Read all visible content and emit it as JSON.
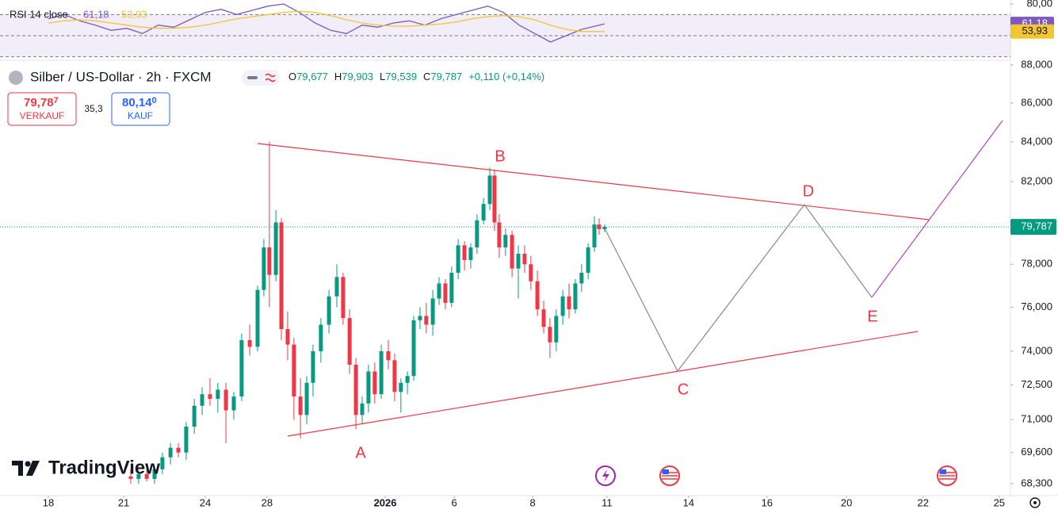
{
  "chart_data": [
    {
      "type": "candlestick",
      "title": "Silber / US-Dollar · 2h · FXCM",
      "x": [
        3.15,
        3.45,
        3.76,
        4.06,
        4.36,
        4.67,
        4.97,
        5.27,
        5.58,
        5.88,
        6.18,
        6.48,
        6.79,
        7.09,
        7.39,
        7.7,
        8.0,
        8.24,
        8.45,
        8.7,
        8.91,
        9.15,
        9.39,
        9.64,
        9.88,
        10.12,
        10.42,
        10.73,
        11.03,
        11.27,
        11.52,
        11.76,
        12.0,
        12.24,
        12.48,
        12.73,
        13.0,
        13.24,
        13.48,
        13.73,
        13.97,
        14.21,
        14.45,
        14.7,
        14.94,
        15.18,
        15.42,
        15.67,
        15.91,
        16.15,
        16.39,
        16.64,
        16.88,
        17.06,
        17.24,
        17.48,
        17.73,
        17.97,
        18.21,
        18.45,
        18.7,
        18.94,
        19.18,
        19.42,
        19.67,
        19.91,
        20.15,
        20.39,
        20.64,
        20.88,
        21.06,
        21.27
      ],
      "open": [
        68.6,
        68.5,
        68.7,
        68.5,
        68.9,
        69.4,
        69.8,
        69.6,
        70.7,
        71.6,
        72.1,
        71.9,
        72.3,
        71.4,
        72.0,
        74.5,
        74.2,
        76.8,
        78.8,
        77.5,
        80.0,
        75.0,
        74.3,
        72.0,
        71.2,
        72.6,
        74.0,
        75.2,
        76.5,
        77.4,
        75.5,
        73.4,
        71.2,
        71.7,
        73.1,
        72.1,
        74.0,
        73.6,
        72.2,
        72.6,
        72.9,
        75.4,
        75.6,
        75.2,
        76.4,
        77.1,
        76.2,
        77.6,
        78.9,
        78.2,
        78.8,
        80.1,
        80.9,
        82.3,
        80.0,
        78.8,
        79.4,
        77.8,
        78.5,
        78.0,
        77.2,
        75.9,
        75.1,
        74.4,
        75.6,
        76.5,
        75.9,
        77.1,
        77.6,
        78.8,
        79.9,
        79.677
      ],
      "high": [
        68.9,
        68.8,
        68.9,
        69.0,
        69.6,
        70.0,
        70.0,
        70.9,
        71.9,
        72.4,
        72.8,
        72.6,
        72.6,
        72.2,
        74.8,
        75.2,
        77.0,
        79.2,
        84.0,
        80.6,
        80.2,
        75.8,
        74.6,
        72.8,
        72.9,
        74.3,
        75.5,
        76.8,
        78.0,
        77.6,
        75.9,
        73.7,
        72.0,
        73.4,
        73.5,
        74.3,
        74.5,
        73.9,
        72.8,
        73.1,
        75.6,
        76.0,
        76.2,
        76.8,
        77.4,
        77.3,
        77.9,
        79.2,
        79.1,
        79.0,
        80.4,
        81.2,
        82.7,
        82.6,
        80.4,
        79.7,
        79.6,
        78.9,
        78.9,
        78.4,
        77.7,
        76.3,
        75.5,
        75.9,
        76.8,
        77.1,
        77.3,
        78.0,
        79.0,
        80.3,
        80.2,
        79.903
      ],
      "low": [
        68.3,
        68.3,
        68.4,
        68.3,
        68.7,
        69.1,
        69.4,
        69.3,
        70.4,
        71.2,
        71.6,
        71.3,
        70.0,
        71.0,
        71.8,
        73.8,
        74.0,
        76.5,
        76.0,
        77.2,
        74.5,
        73.6,
        71.0,
        70.2,
        70.8,
        72.0,
        73.5,
        74.8,
        76.0,
        75.2,
        73.0,
        70.6,
        70.8,
        71.3,
        71.7,
        71.9,
        73.2,
        71.8,
        71.3,
        72.1,
        72.7,
        75.0,
        74.8,
        74.7,
        76.1,
        75.9,
        76.0,
        77.3,
        77.7,
        77.8,
        78.5,
        79.9,
        80.6,
        79.6,
        78.3,
        78.4,
        77.4,
        76.4,
        77.6,
        76.8,
        75.6,
        74.8,
        73.7,
        74.0,
        75.2,
        75.5,
        75.7,
        76.7,
        77.3,
        78.6,
        79.4,
        79.539
      ],
      "close": [
        68.5,
        68.7,
        68.5,
        68.9,
        69.4,
        69.8,
        69.6,
        70.7,
        71.6,
        72.1,
        71.9,
        72.3,
        71.4,
        72.0,
        74.5,
        74.2,
        76.8,
        78.8,
        77.5,
        80.0,
        75.0,
        74.3,
        72.0,
        71.2,
        72.6,
        74.0,
        75.2,
        76.5,
        77.4,
        75.5,
        73.4,
        71.2,
        71.7,
        73.1,
        72.1,
        74.0,
        73.6,
        72.2,
        72.6,
        72.9,
        75.4,
        75.6,
        75.2,
        76.4,
        77.1,
        76.2,
        77.6,
        78.9,
        78.2,
        78.8,
        80.1,
        80.9,
        82.3,
        80.0,
        78.8,
        79.4,
        77.8,
        78.5,
        78.0,
        77.2,
        75.9,
        75.1,
        74.4,
        75.6,
        76.5,
        75.9,
        77.1,
        77.6,
        78.8,
        79.9,
        79.677,
        79.787
      ],
      "up_color": "#089981",
      "down_color": "#f23645",
      "xlim": [
        -1.85,
        36.79
      ],
      "ylim": [
        67.81,
        88.25
      ],
      "log_scale": true,
      "grid": false,
      "xticks": [
        {
          "value": 0,
          "label": "18"
        },
        {
          "value": 2.88,
          "label": "21"
        },
        {
          "value": 6.0,
          "label": "24"
        },
        {
          "value": 8.36,
          "label": "28"
        },
        {
          "value": 12.88,
          "label": "2026"
        },
        {
          "value": 15.52,
          "label": "6"
        },
        {
          "value": 18.52,
          "label": "8"
        },
        {
          "value": 21.36,
          "label": "11"
        },
        {
          "value": 24.48,
          "label": "14"
        },
        {
          "value": 27.48,
          "label": "16"
        },
        {
          "value": 30.52,
          "label": "20"
        },
        {
          "value": 33.45,
          "label": "22"
        },
        {
          "value": 36.36,
          "label": "25"
        }
      ],
      "yticks": [
        {
          "value": 68.3,
          "label": "68,300"
        },
        {
          "value": 69.6,
          "label": "69,600"
        },
        {
          "value": 71,
          "label": "71,000"
        },
        {
          "value": 72.5,
          "label": "72,500"
        },
        {
          "value": 74,
          "label": "74,000"
        },
        {
          "value": 76,
          "label": "76,000"
        },
        {
          "value": 78,
          "label": "78,000"
        },
        {
          "value": 82,
          "label": "82,000"
        },
        {
          "value": 84,
          "label": "84,000"
        },
        {
          "value": 86,
          "label": "86,000"
        },
        {
          "value": 88,
          "label": "88,000"
        }
      ],
      "last_price": {
        "value": 79.787,
        "label": "79,787"
      },
      "annotations": [
        "A",
        "B",
        "C",
        "D",
        "E"
      ]
    },
    {
      "type": "line",
      "title": "RSI 14 close",
      "x": [
        0,
        0.6,
        1.2,
        1.8,
        2.4,
        3.0,
        3.6,
        4.2,
        4.8,
        5.4,
        6.0,
        6.6,
        7.2,
        7.8,
        8.4,
        9.0,
        9.6,
        10.2,
        10.8,
        11.4,
        12.0,
        12.6,
        13.2,
        13.8,
        14.4,
        15.0,
        15.6,
        16.2,
        16.8,
        17.4,
        18.0,
        18.6,
        19.2,
        19.8,
        20.4,
        21.27
      ],
      "series": [
        {
          "color": "#7e57c2",
          "last_label": "61,18",
          "values": [
            66,
            70,
            64,
            60,
            55,
            57,
            52,
            60,
            58,
            65,
            72,
            75,
            70,
            74,
            78,
            80,
            72,
            62,
            55,
            52,
            60,
            58,
            62,
            64,
            60,
            66,
            70,
            74,
            78,
            72,
            60,
            52,
            44,
            50,
            56,
            61.18
          ]
        },
        {
          "color": "#f2c531",
          "last_label": "53,93",
          "values": [
            62,
            64,
            65,
            64,
            62,
            60,
            58,
            57,
            57,
            58,
            60,
            63,
            66,
            68,
            70,
            72,
            73,
            72,
            69,
            65,
            62,
            60,
            59,
            59,
            60,
            61,
            63,
            66,
            68,
            69,
            68,
            65,
            60,
            56,
            54,
            53.93
          ]
        }
      ],
      "xlim": [
        -1.85,
        36.79
      ],
      "ylim": [
        27.5,
        83.75
      ],
      "yticks": [
        {
          "value": 80,
          "label": "80,00"
        }
      ],
      "hlines": [
        70,
        50,
        30
      ]
    }
  ],
  "header": {
    "ohlc": [
      {
        "key": "O",
        "value": "79,677"
      },
      {
        "key": "H",
        "value": "79,903"
      },
      {
        "key": "L",
        "value": "79,539"
      },
      {
        "key": "C",
        "value": "79,787"
      }
    ],
    "change": "+0,110 (+0,14%)"
  },
  "trade": {
    "sell_price": "79,78",
    "sell_digit": "7",
    "sell_label": "VERKAUF",
    "spread": "35,3",
    "buy_price": "80,14",
    "buy_digit": "0",
    "buy_label": "KAUF"
  },
  "logo": "TradingView"
}
